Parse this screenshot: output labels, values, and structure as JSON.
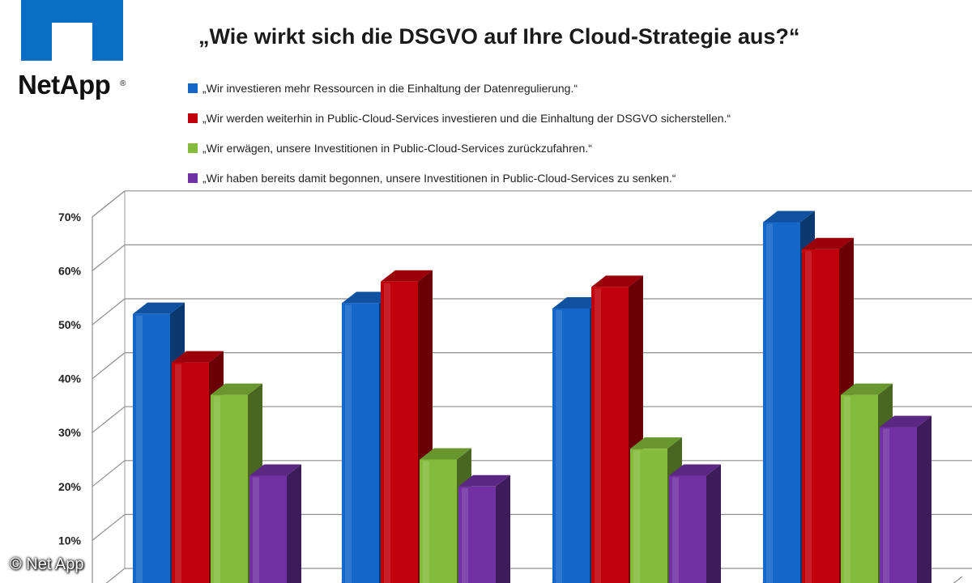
{
  "header": {
    "logo_text": "NetApp",
    "logo_reg": "®"
  },
  "copyright": "© Net App",
  "colors": {
    "blue": "#1466c8",
    "red": "#c0000b",
    "green": "#84bb3c",
    "purple": "#7131a3",
    "logo_blue": "#0a6fc4"
  },
  "chart_data": {
    "type": "bar",
    "title": "„Wie wirkt sich die DSGVO auf Ihre Cloud-Strategie aus?“",
    "categories": [
      "",
      "",
      "",
      ""
    ],
    "series": [
      {
        "name": "„Wir investieren mehr Ressourcen in die Einhaltung der Datenregulierung.“",
        "color": "#1466c8",
        "values": [
          52,
          54,
          53,
          69
        ]
      },
      {
        "name": "„Wir werden weiterhin in Public-Cloud-Services investieren und die Einhaltung der DSGVO sicherstellen.“",
        "color": "#c0000b",
        "values": [
          43,
          58,
          57,
          64
        ]
      },
      {
        "name": "„Wir erwägen, unsere Investitionen in Public-Cloud-Services zurückzufahren.“",
        "color": "#84bb3c",
        "values": [
          37,
          25,
          27,
          37
        ]
      },
      {
        "name": "„Wir haben bereits damit begonnen, unsere Investitionen in Public-Cloud-Services zu senken.“",
        "color": "#7131a3",
        "values": [
          22,
          20,
          22,
          31
        ]
      }
    ],
    "yticks": [
      "10%",
      "20%",
      "30%",
      "40%",
      "50%",
      "60%",
      "70%"
    ],
    "ylim": [
      0,
      70
    ],
    "grid": true,
    "legend": "top"
  }
}
